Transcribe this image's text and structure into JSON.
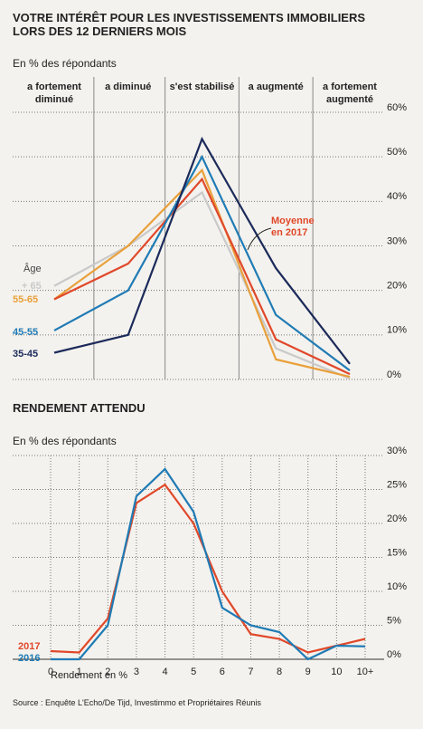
{
  "source": "Source : Enquête L'Echo/De Tijd, Investimmo et Propriétaires Réunis",
  "chart_data": [
    {
      "type": "line",
      "title": "VOTRE INTÉRÊT POUR LES INVESTISSEMENTS IMMOBILIERS LORS DES 12 DERNIERS MOIS",
      "subtitle": "En % des répondants",
      "annotation": "Âge",
      "categories": [
        "a fortement diminué",
        "a diminué",
        "s'est stabilisé",
        "a augmenté",
        "a fortement augmenté"
      ],
      "series": [
        {
          "name": "+ 65",
          "color": "#c9c9c9",
          "values": [
            21,
            30,
            42,
            7,
            0.2
          ]
        },
        {
          "name": "55-65",
          "color": "#e9a03b",
          "values": [
            18,
            30,
            47,
            4.5,
            0.6
          ]
        },
        {
          "name": "Moyenne en 2017",
          "color": "#e0482a",
          "values": [
            18,
            26,
            45,
            9,
            1.2
          ]
        },
        {
          "name": "45-55",
          "color": "#1f7bb5",
          "values": [
            11,
            20,
            50,
            14.5,
            2
          ]
        },
        {
          "name": "35-45",
          "color": "#1b2a5a",
          "values": [
            6,
            10,
            54,
            25,
            3.5
          ]
        }
      ],
      "ylim": [
        0,
        60
      ],
      "yticks": [
        {
          "value": 0,
          "label": "0%"
        },
        {
          "value": 10,
          "label": "10%"
        },
        {
          "value": 20,
          "label": "20%"
        },
        {
          "value": 30,
          "label": "30%"
        },
        {
          "value": 40,
          "label": "40%"
        },
        {
          "value": 50,
          "label": "50%"
        },
        {
          "value": 60,
          "label": "60%"
        }
      ],
      "grid": true
    },
    {
      "type": "line",
      "title": "RENDEMENT ATTENDU",
      "subtitle": "En % des répondants",
      "xlabel": "Rendement en %",
      "categories": [
        "0",
        "1",
        "2",
        "3",
        "4",
        "5",
        "6",
        "7",
        "8",
        "9",
        "10",
        "10+"
      ],
      "series": [
        {
          "name": "2017",
          "color": "#e0482a",
          "values": [
            1.2,
            1,
            6,
            23,
            25.7,
            20,
            10,
            3.7,
            3,
            1,
            2,
            3
          ]
        },
        {
          "name": "2016",
          "color": "#1f7bb5",
          "values": [
            0,
            0,
            5,
            24,
            28,
            21.7,
            7.6,
            5,
            4,
            0,
            2,
            1.9
          ]
        }
      ],
      "ylim": [
        0,
        30
      ],
      "yticks": [
        {
          "value": 0,
          "label": "0%"
        },
        {
          "value": 5,
          "label": "5%"
        },
        {
          "value": 10,
          "label": "10%"
        },
        {
          "value": 15,
          "label": "15%"
        },
        {
          "value": 20,
          "label": "20%"
        },
        {
          "value": 25,
          "label": "25%"
        },
        {
          "value": 30,
          "label": "30%"
        }
      ],
      "grid": true
    }
  ]
}
